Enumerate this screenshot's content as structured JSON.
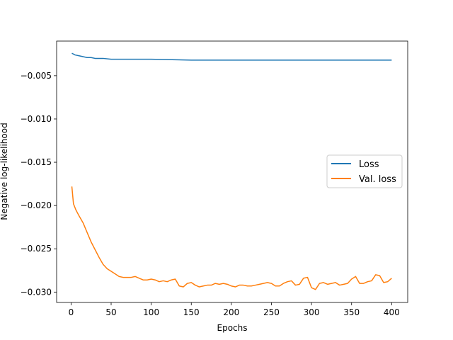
{
  "chart_data": {
    "type": "line",
    "title": "",
    "xlabel": "Epochs",
    "ylabel": "Negative log-likelihood",
    "xlim": [
      -18,
      420
    ],
    "ylim": [
      -0.0312,
      -0.001
    ],
    "xticks": [
      0,
      50,
      100,
      150,
      200,
      250,
      300,
      350,
      400
    ],
    "xtick_labels": [
      "0",
      "50",
      "100",
      "150",
      "200",
      "250",
      "300",
      "350",
      "400"
    ],
    "yticks": [
      -0.005,
      -0.01,
      -0.015,
      -0.02,
      -0.025,
      -0.03
    ],
    "ytick_labels": [
      "−0.005",
      "−0.010",
      "−0.015",
      "−0.020",
      "−0.025",
      "−0.030"
    ],
    "grid": false,
    "legend_position": "center-right",
    "series": [
      {
        "name": "Loss",
        "color": "#1f77b4",
        "x": [
          1,
          5,
          10,
          15,
          20,
          25,
          30,
          40,
          50,
          60,
          80,
          100,
          150,
          200,
          250,
          300,
          350,
          400
        ],
        "y": [
          -0.0024,
          -0.0026,
          -0.0027,
          -0.0028,
          -0.0029,
          -0.0029,
          -0.003,
          -0.003,
          -0.0031,
          -0.0031,
          -0.0031,
          -0.0031,
          -0.0032,
          -0.0032,
          -0.0032,
          -0.0032,
          -0.0032,
          -0.0032
        ]
      },
      {
        "name": "Val. loss",
        "color": "#ff7f0e",
        "x": [
          1,
          3,
          6,
          10,
          15,
          20,
          25,
          30,
          35,
          40,
          45,
          50,
          55,
          60,
          65,
          70,
          75,
          80,
          85,
          90,
          95,
          100,
          105,
          110,
          115,
          120,
          125,
          130,
          135,
          140,
          145,
          150,
          155,
          160,
          165,
          170,
          175,
          180,
          185,
          190,
          195,
          200,
          205,
          210,
          215,
          220,
          225,
          230,
          235,
          240,
          245,
          250,
          255,
          260,
          265,
          270,
          275,
          280,
          285,
          290,
          295,
          300,
          305,
          310,
          315,
          320,
          325,
          330,
          335,
          340,
          345,
          350,
          355,
          360,
          365,
          370,
          375,
          380,
          385,
          390,
          395,
          400
        ],
        "y": [
          -0.0178,
          -0.0198,
          -0.0205,
          -0.0212,
          -0.022,
          -0.0231,
          -0.0242,
          -0.0251,
          -0.026,
          -0.0268,
          -0.0273,
          -0.0276,
          -0.0279,
          -0.0282,
          -0.0283,
          -0.0283,
          -0.0283,
          -0.0282,
          -0.0284,
          -0.0286,
          -0.0286,
          -0.0285,
          -0.0286,
          -0.0288,
          -0.0287,
          -0.0288,
          -0.0286,
          -0.0285,
          -0.0293,
          -0.0294,
          -0.029,
          -0.0289,
          -0.0292,
          -0.0294,
          -0.0293,
          -0.0292,
          -0.0292,
          -0.029,
          -0.0291,
          -0.029,
          -0.0291,
          -0.0293,
          -0.0294,
          -0.0292,
          -0.0292,
          -0.0293,
          -0.0293,
          -0.0292,
          -0.0291,
          -0.029,
          -0.0289,
          -0.029,
          -0.0293,
          -0.0293,
          -0.029,
          -0.0288,
          -0.0287,
          -0.0292,
          -0.0291,
          -0.0284,
          -0.0283,
          -0.0295,
          -0.0297,
          -0.029,
          -0.0289,
          -0.0291,
          -0.029,
          -0.0289,
          -0.0292,
          -0.0291,
          -0.029,
          -0.0285,
          -0.0282,
          -0.029,
          -0.029,
          -0.0288,
          -0.0287,
          -0.028,
          -0.0281,
          -0.0289,
          -0.0288,
          -0.0284
        ]
      }
    ]
  }
}
